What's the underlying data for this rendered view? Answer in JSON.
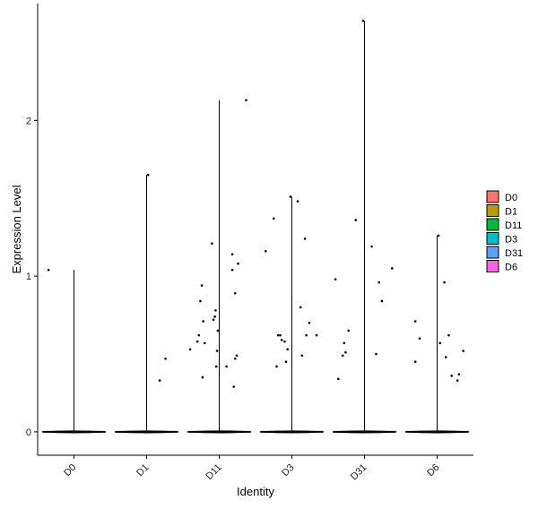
{
  "chart_data": {
    "type": "violin",
    "xlabel": "Identity",
    "ylabel": "Expression Level",
    "categories": [
      "D0",
      "D1",
      "D11",
      "D3",
      "D31",
      "D6"
    ],
    "y_ticks": [
      "0",
      "1",
      "2"
    ],
    "ylim": [
      -0.15,
      2.75
    ],
    "grid": false,
    "legend": {
      "position": "right"
    },
    "colors": {
      "D0": "#F8766D",
      "D1": "#B79F00",
      "D11": "#00BA38",
      "D3": "#00BFC4",
      "D31": "#619CFF",
      "D6": "#F564E3"
    },
    "series": [
      {
        "name": "D0",
        "max": 1.04,
        "points": [
          [
            -0.35,
            1.04
          ]
        ]
      },
      {
        "name": "D1",
        "max": 1.65,
        "points": [
          [
            0.02,
            1.65
          ],
          [
            0.18,
            0.33
          ],
          [
            0.26,
            0.47
          ]
        ]
      },
      {
        "name": "D11",
        "max": 2.13,
        "points": [
          [
            -0.4,
            0.53
          ],
          [
            -0.3,
            0.58
          ],
          [
            -0.28,
            0.62
          ],
          [
            -0.26,
            0.84
          ],
          [
            -0.24,
            0.94
          ],
          [
            -0.22,
            0.71
          ],
          [
            -0.2,
            0.57
          ],
          [
            -0.23,
            0.35
          ],
          [
            -0.1,
            1.21
          ],
          [
            -0.08,
            0.72
          ],
          [
            -0.06,
            0.74
          ],
          [
            -0.05,
            0.78
          ],
          [
            -0.04,
            0.42
          ],
          [
            -0.03,
            0.52
          ],
          [
            -0.02,
            0.65
          ],
          [
            0.1,
            0.42
          ],
          [
            0.18,
            1.14
          ],
          [
            0.18,
            1.04
          ],
          [
            0.2,
            0.29
          ],
          [
            0.22,
            0.89
          ],
          [
            0.22,
            0.47
          ],
          [
            0.24,
            0.49
          ],
          [
            0.26,
            1.08
          ],
          [
            0.37,
            2.13
          ]
        ]
      },
      {
        "name": "D3",
        "max": 1.51,
        "points": [
          [
            -0.36,
            1.16
          ],
          [
            -0.25,
            1.37
          ],
          [
            -0.21,
            0.42
          ],
          [
            -0.19,
            0.62
          ],
          [
            -0.16,
            0.62
          ],
          [
            -0.14,
            0.59
          ],
          [
            -0.1,
            0.58
          ],
          [
            -0.08,
            0.45
          ],
          [
            -0.06,
            0.53
          ],
          [
            -0.02,
            1.51
          ],
          [
            0.08,
            1.48
          ],
          [
            0.12,
            0.8
          ],
          [
            0.14,
            0.49
          ],
          [
            0.18,
            1.24
          ],
          [
            0.2,
            0.62
          ],
          [
            0.24,
            0.7
          ],
          [
            0.34,
            0.62
          ]
        ]
      },
      {
        "name": "D31",
        "max": 2.64,
        "points": [
          [
            -0.4,
            0.98
          ],
          [
            -0.36,
            0.34
          ],
          [
            -0.3,
            0.49
          ],
          [
            -0.28,
            0.57
          ],
          [
            -0.26,
            0.51
          ],
          [
            -0.22,
            0.65
          ],
          [
            -0.12,
            1.36
          ],
          [
            -0.02,
            2.64
          ],
          [
            0.1,
            1.19
          ],
          [
            0.16,
            0.5
          ],
          [
            0.2,
            0.96
          ],
          [
            0.24,
            0.84
          ],
          [
            0.38,
            1.05
          ]
        ]
      },
      {
        "name": "D6",
        "max": 1.26,
        "points": [
          [
            -0.3,
            0.71
          ],
          [
            -0.3,
            0.45
          ],
          [
            -0.24,
            0.6
          ],
          [
            0.02,
            1.26
          ],
          [
            0.04,
            0.57
          ],
          [
            0.1,
            0.96
          ],
          [
            0.12,
            0.48
          ],
          [
            0.16,
            0.62
          ],
          [
            0.2,
            0.36
          ],
          [
            0.28,
            0.33
          ],
          [
            0.3,
            0.37
          ],
          [
            0.36,
            0.52
          ]
        ]
      }
    ]
  }
}
